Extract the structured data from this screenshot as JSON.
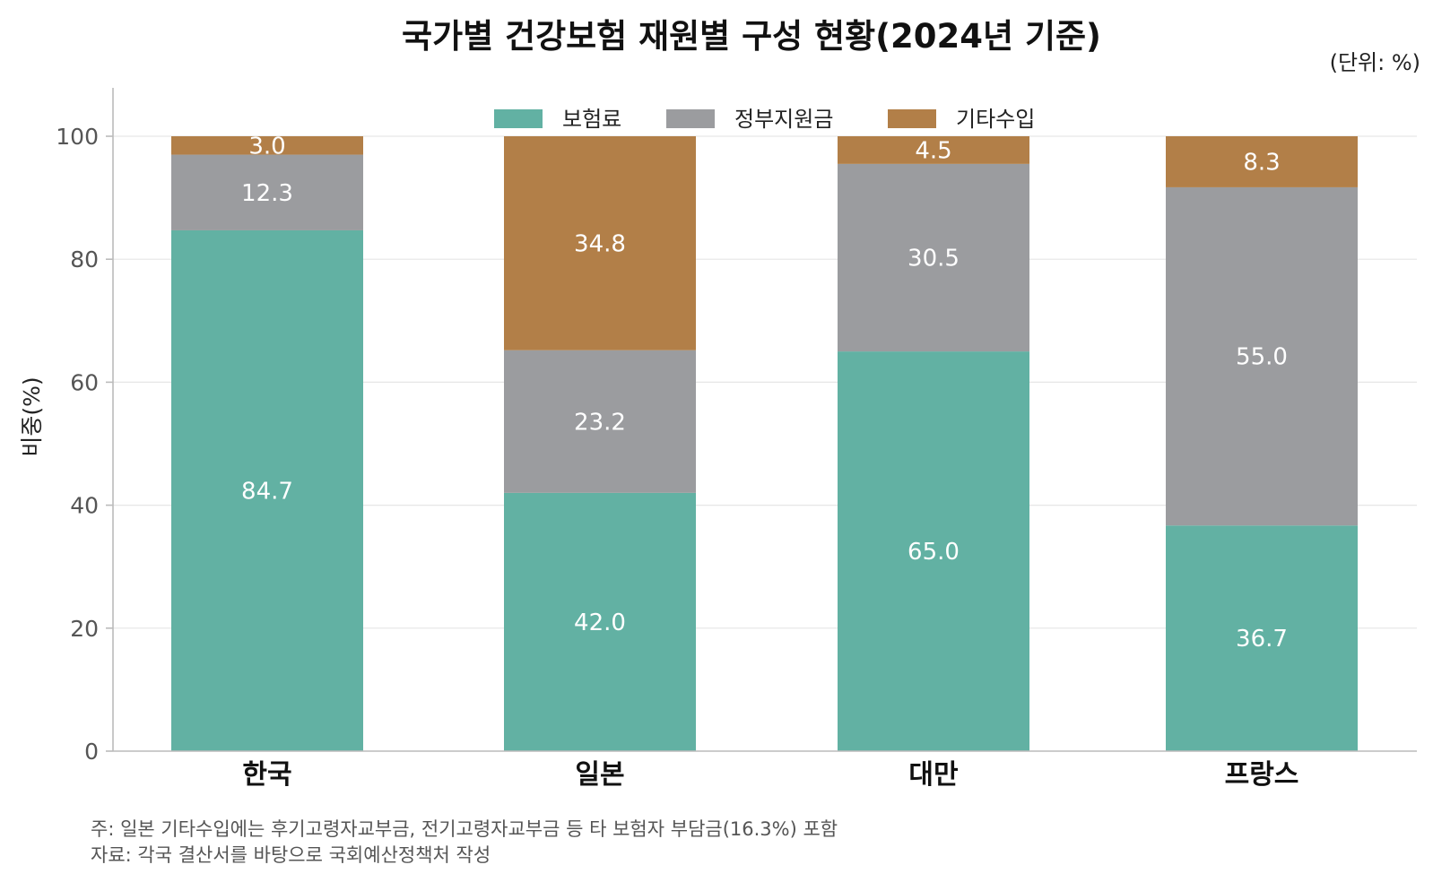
{
  "chart_data": {
    "type": "bar",
    "stacked": true,
    "title": "국가별 건강보험 재원별 구성 현황(2024년 기준)",
    "unit_label": "(단위: %)",
    "xlabel": "",
    "ylabel": "비중(%)",
    "ylim": [
      0,
      100
    ],
    "yticks": [
      0,
      20,
      40,
      60,
      80,
      100
    ],
    "grid": true,
    "legend_position": "top-center",
    "categories": [
      "한국",
      "일본",
      "대만",
      "프랑스"
    ],
    "series": [
      {
        "name": "보험료",
        "color": "#62b1a3",
        "values": [
          84.7,
          42.0,
          65.0,
          36.7
        ]
      },
      {
        "name": "정부지원금",
        "color": "#9b9c9f",
        "values": [
          12.3,
          23.2,
          30.5,
          55.0
        ]
      },
      {
        "name": "기타수입",
        "color": "#b27f48",
        "values": [
          3.0,
          34.8,
          4.5,
          8.3
        ]
      }
    ],
    "notes": [
      "주: 일본 기타수입에는 후기고령자교부금, 전기고령자교부금 등 타 보험자 부담금(16.3%) 포함",
      "자료: 각국 결산서를 바탕으로 국회예산정책처 작성"
    ]
  }
}
